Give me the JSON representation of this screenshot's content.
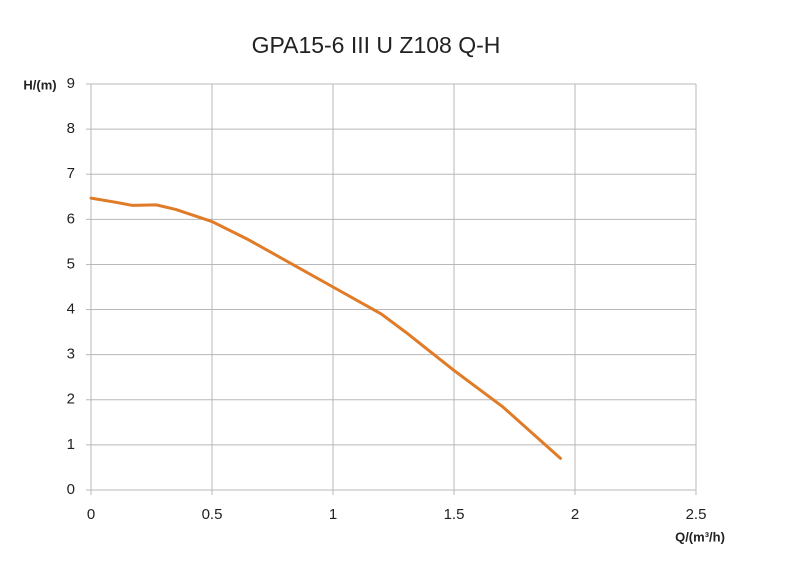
{
  "chart_data": {
    "type": "line",
    "title": "GPA15-6 III U Z108 Q-H",
    "x_label": "Q/(m³/h)",
    "y_label": "H/(m)",
    "x": [
      0,
      0.1,
      0.17,
      0.27,
      0.35,
      0.5,
      0.65,
      0.8,
      1.0,
      1.2,
      1.3,
      1.5,
      1.7,
      1.94
    ],
    "series": [
      {
        "name": "Q-H",
        "color": "#e07b28",
        "values": [
          6.47,
          6.38,
          6.31,
          6.32,
          6.22,
          5.95,
          5.55,
          5.1,
          4.5,
          3.9,
          3.5,
          2.65,
          1.85,
          0.7
        ]
      }
    ],
    "xlim": [
      0,
      2.5
    ],
    "xticks": [
      0,
      0.5,
      1,
      1.5,
      2,
      2.5
    ],
    "ylim": [
      0,
      9
    ],
    "yticks": [
      0,
      1,
      2,
      3,
      4,
      5,
      6,
      7,
      8,
      9
    ],
    "grid": true
  }
}
